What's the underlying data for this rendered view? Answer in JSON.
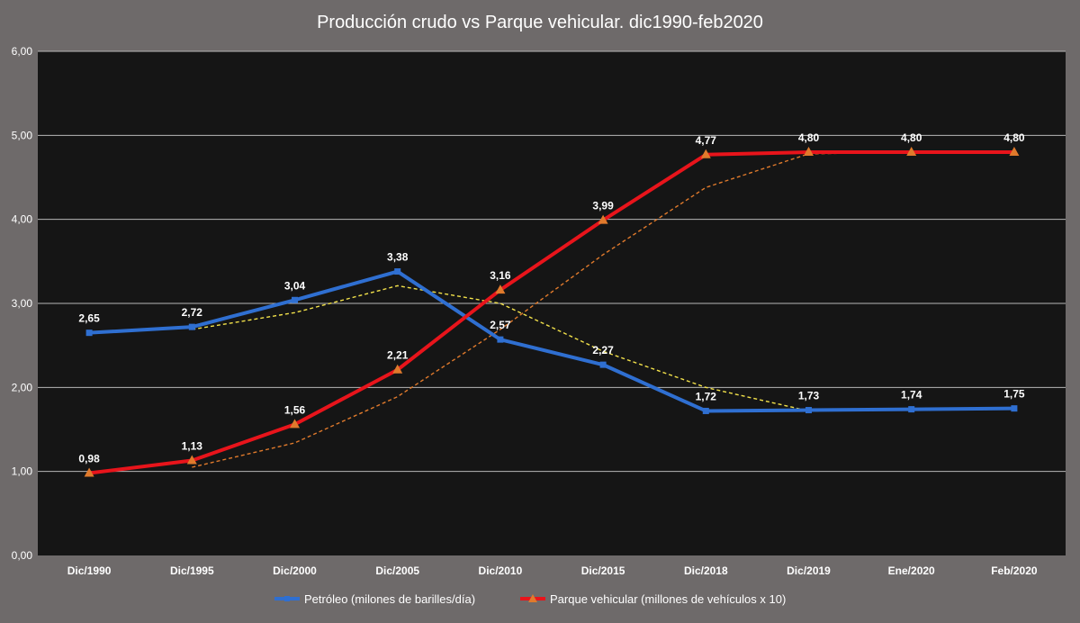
{
  "chart_data": {
    "type": "line",
    "title": "Producción crudo vs Parque vehicular. dic1990-feb2020",
    "categories": [
      "Dic/1990",
      "Dic/1995",
      "Dic/2000",
      "Dic/2005",
      "Dic/2010",
      "Dic/2015",
      "Dic/2018",
      "Dic/2019",
      "Ene/2020",
      "Feb/2020"
    ],
    "y_ticks": [
      "0,00",
      "1,00",
      "2,00",
      "3,00",
      "4,00",
      "5,00",
      "6,00"
    ],
    "ylim": [
      0,
      6
    ],
    "grid": true,
    "legend_position": "bottom",
    "series": [
      {
        "name": "Petróleo (milones de barilles/día)",
        "color": "#2f6fd1",
        "marker": "square",
        "values": [
          2.65,
          2.72,
          3.04,
          3.38,
          2.57,
          2.27,
          1.72,
          1.73,
          1.74,
          1.75
        ],
        "labels": [
          "2,65",
          "2,72",
          "3,04",
          "3,38",
          "2,57",
          "2,27",
          "1,72",
          "1,73",
          "1,74",
          "1,75"
        ],
        "trend_color": "#f2e14a",
        "trend_values": [
          null,
          2.69,
          2.89,
          3.21,
          3.0,
          2.43,
          2.0,
          1.72,
          1.73,
          1.74
        ]
      },
      {
        "name": "Parque vehicular (millones de vehículos x 10)",
        "color": "#e8141b",
        "marker": "triangle",
        "marker_color": "#e07a2c",
        "values": [
          0.98,
          1.13,
          1.56,
          2.21,
          3.16,
          3.99,
          4.77,
          4.8,
          4.8,
          4.8
        ],
        "labels": [
          "0,98",
          "1,13",
          "1,56",
          "2,21",
          "3,16",
          "3,99",
          "4,77",
          "4,80",
          "4,80",
          "4,80"
        ],
        "trend_color": "#e07a2c",
        "trend_values": [
          null,
          1.05,
          1.34,
          1.89,
          2.69,
          3.58,
          4.38,
          4.78,
          4.8,
          4.8
        ]
      }
    ]
  }
}
